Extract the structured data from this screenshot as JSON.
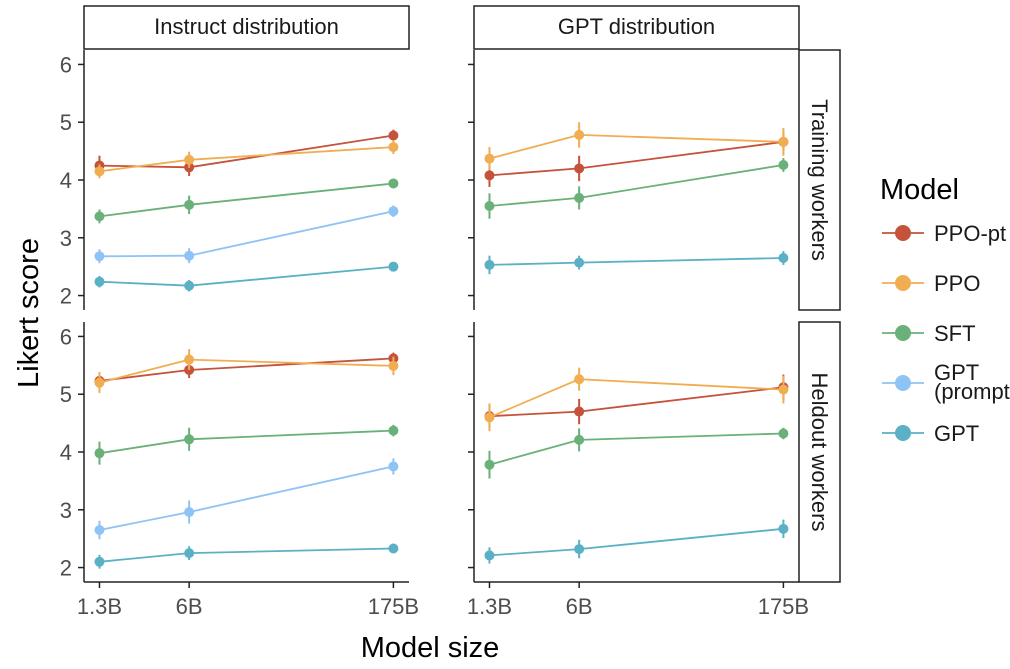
{
  "chart_data": {
    "type": "line",
    "xlabel": "Model size",
    "ylabel": "Likert score",
    "x_ticks": [
      "1.3B",
      "6B",
      "175B"
    ],
    "y_ticks": [
      2,
      3,
      4,
      5,
      6
    ],
    "ylim": [
      1.75,
      6.25
    ],
    "col_titles": [
      "Instruct distribution",
      "GPT distribution"
    ],
    "row_titles": [
      "Training workers",
      "Heldout workers"
    ],
    "legend": {
      "title": "Model",
      "position": "right",
      "entries": [
        {
          "label": "PPO-pt",
          "color": "#c5523a"
        },
        {
          "label": "PPO",
          "color": "#f1ad52"
        },
        {
          "label": "SFT",
          "color": "#6ab079"
        },
        {
          "label": "GPT\n(prompted)",
          "color": "#8ec3f6"
        },
        {
          "label": "GPT",
          "color": "#5ab1c5"
        }
      ]
    },
    "panels": [
      {
        "row": 0,
        "col": 0,
        "series": [
          {
            "name": "PPO-pt",
            "values": [
              4.25,
              4.22,
              4.77
            ],
            "err": [
              0.17,
              0.15,
              0.1
            ]
          },
          {
            "name": "PPO",
            "values": [
              4.15,
              4.35,
              4.57
            ],
            "err": [
              0.12,
              0.14,
              0.12
            ]
          },
          {
            "name": "SFT",
            "values": [
              3.37,
              3.57,
              3.94
            ],
            "err": [
              0.12,
              0.16,
              0.08
            ]
          },
          {
            "name": "GPT (prompted)",
            "values": [
              2.68,
              2.69,
              3.46
            ],
            "err": [
              0.12,
              0.13,
              0.1
            ]
          },
          {
            "name": "GPT",
            "values": [
              2.24,
              2.17,
              2.5
            ],
            "err": [
              0.1,
              0.1,
              0.06
            ]
          }
        ]
      },
      {
        "row": 0,
        "col": 1,
        "series": [
          {
            "name": "PPO-pt",
            "values": [
              4.08,
              4.2,
              4.66
            ],
            "err": [
              0.2,
              0.22,
              0.15
            ]
          },
          {
            "name": "PPO",
            "values": [
              4.37,
              4.78,
              4.66
            ],
            "err": [
              0.2,
              0.22,
              0.24
            ]
          },
          {
            "name": "SFT",
            "values": [
              3.55,
              3.69,
              4.26
            ],
            "err": [
              0.22,
              0.2,
              0.12
            ]
          },
          {
            "name": "GPT",
            "values": [
              2.53,
              2.57,
              2.65
            ],
            "err": [
              0.16,
              0.12,
              0.12
            ]
          }
        ]
      },
      {
        "row": 1,
        "col": 0,
        "series": [
          {
            "name": "PPO-pt",
            "values": [
              5.23,
              5.42,
              5.62
            ],
            "err": [
              0.15,
              0.14,
              0.1
            ]
          },
          {
            "name": "PPO",
            "values": [
              5.2,
              5.6,
              5.49
            ],
            "err": [
              0.18,
              0.18,
              0.16
            ]
          },
          {
            "name": "SFT",
            "values": [
              3.98,
              4.22,
              4.37
            ],
            "err": [
              0.2,
              0.2,
              0.1
            ]
          },
          {
            "name": "GPT (prompted)",
            "values": [
              2.65,
              2.96,
              3.75
            ],
            "err": [
              0.16,
              0.2,
              0.14
            ]
          },
          {
            "name": "GPT",
            "values": [
              2.1,
              2.25,
              2.33
            ],
            "err": [
              0.12,
              0.12,
              0.08
            ]
          }
        ]
      },
      {
        "row": 1,
        "col": 1,
        "series": [
          {
            "name": "PPO-pt",
            "values": [
              4.62,
              4.7,
              5.12
            ],
            "err": [
              0.2,
              0.22,
              0.22
            ]
          },
          {
            "name": "PPO",
            "values": [
              4.6,
              5.26,
              5.08
            ],
            "err": [
              0.24,
              0.2,
              0.24
            ]
          },
          {
            "name": "SFT",
            "values": [
              3.78,
              4.21,
              4.32
            ],
            "err": [
              0.24,
              0.2,
              0.1
            ]
          },
          {
            "name": "GPT",
            "values": [
              2.21,
              2.32,
              2.67
            ],
            "err": [
              0.14,
              0.16,
              0.16
            ]
          }
        ]
      }
    ]
  }
}
